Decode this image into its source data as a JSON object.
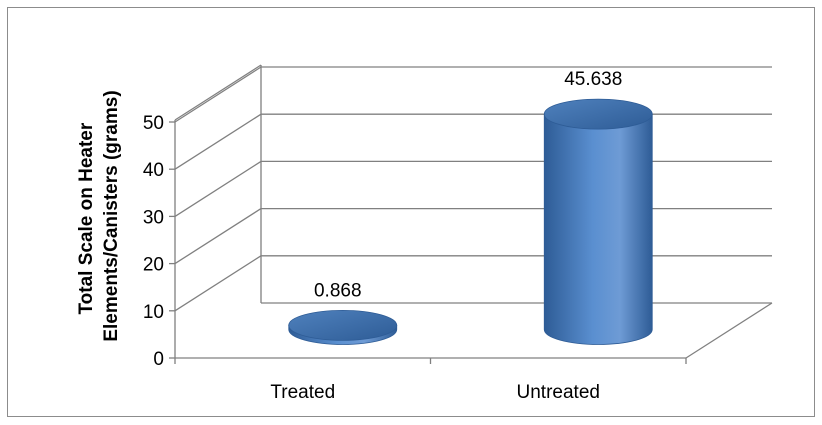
{
  "chart_data": {
    "type": "bar",
    "style": "3d-cylinder",
    "categories": [
      "Treated",
      "Untreated"
    ],
    "values": [
      0.868,
      45.638
    ],
    "data_labels": [
      "0.868",
      "45.638"
    ],
    "title": "",
    "xlabel": "",
    "ylabel": "Total Scale on Heater Elements/Canisters (grams)",
    "ylabel_lines": [
      "Total Scale on Heater",
      "Elements/Canisters (grams)"
    ],
    "ylim": [
      0,
      50
    ],
    "yticks": [
      "0",
      "10",
      "20",
      "30",
      "40",
      "50"
    ],
    "grid": true,
    "legend": "none",
    "colors": {
      "bar": "#4F81BD",
      "bar_dark": "#2E5C96",
      "bar_light": "#6E9BD5",
      "grid": "#808080"
    }
  }
}
